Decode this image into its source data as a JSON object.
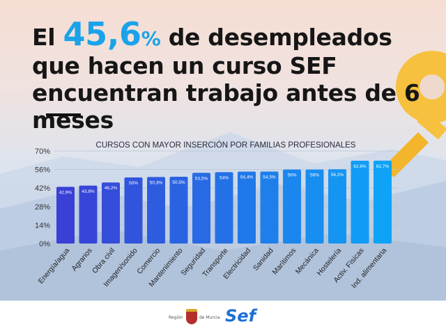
{
  "headline": {
    "prefix": "El ",
    "number": "45,6",
    "percent": "%",
    "rest": " de desempleados que hacen un curso SEF encuentran trabajo antes de 6 meses"
  },
  "footer": {
    "region_left": "Región",
    "region_right": "de Murcia",
    "brand": "Sef"
  },
  "colors": {
    "bar_start": "#3a3fd6",
    "bar_end": "#0ea3f7",
    "accent": "#1aa3ea",
    "key": "#f6c13e"
  },
  "chart_data": {
    "type": "bar",
    "title": "CURSOS CON MAYOR INSERCIÓN POR FAMILIAS PROFESIONALES",
    "categories": [
      "Energía/agua",
      "Agrarios",
      "Obra civil",
      "Imagen/sonido",
      "Comercio",
      "Mantenimiento",
      "Seguridad",
      "Transporte",
      "Electricidad",
      "Sanidad",
      "Marítimos",
      "Mecánica",
      "Hostelería",
      "Activ. Físicas",
      "Ind. alimentaria"
    ],
    "values": [
      42.9,
      43.8,
      46.2,
      50,
      50.3,
      50.5,
      53.5,
      54,
      54.4,
      54.5,
      56,
      56,
      56.2,
      62.6,
      62.7
    ],
    "labels": [
      "42,9%",
      "43,8%",
      "46,2%",
      "50%",
      "50,3%",
      "50,5%",
      "53,5%",
      "54%",
      "54,4%",
      "54,5%",
      "56%",
      "56%",
      "56,2%",
      "62,6%",
      "62,7%"
    ],
    "yticks": [
      "0%",
      "14%",
      "28%",
      "42%",
      "56%",
      "70%"
    ],
    "ylim": [
      0,
      70
    ],
    "grid": true
  }
}
